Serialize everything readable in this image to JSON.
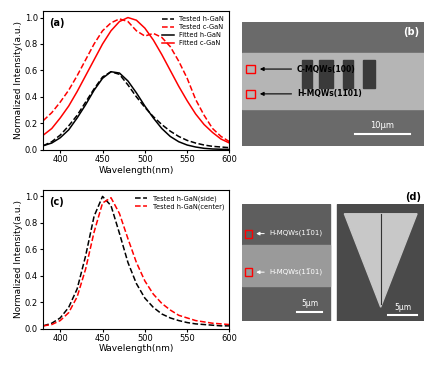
{
  "chart_data": [
    {
      "type": "line",
      "panel": "(a)",
      "x_label": "Wavelength(nm)",
      "y_label": "Normalized Intensity(a.u.)",
      "x": [
        380,
        390,
        400,
        410,
        420,
        430,
        440,
        450,
        460,
        470,
        480,
        490,
        500,
        510,
        520,
        530,
        540,
        550,
        560,
        570,
        580,
        590,
        600
      ],
      "series": [
        {
          "name": "Tested h-GaN",
          "color": "#000000",
          "line_style": "dashed",
          "values": [
            0.03,
            0.06,
            0.11,
            0.18,
            0.26,
            0.36,
            0.46,
            0.55,
            0.59,
            0.57,
            0.49,
            0.4,
            0.32,
            0.25,
            0.19,
            0.14,
            0.1,
            0.07,
            0.05,
            0.035,
            0.025,
            0.02,
            0.015
          ]
        },
        {
          "name": "Tested c-GaN",
          "color": "#ff0000",
          "line_style": "dashed",
          "values": [
            0.22,
            0.28,
            0.36,
            0.45,
            0.56,
            0.68,
            0.8,
            0.9,
            0.96,
            0.99,
            0.97,
            0.9,
            0.86,
            0.88,
            0.85,
            0.78,
            0.67,
            0.54,
            0.38,
            0.26,
            0.16,
            0.1,
            0.06
          ]
        },
        {
          "name": "Fitted h-GaN",
          "color": "#000000",
          "line_style": "solid",
          "values": [
            0.03,
            0.05,
            0.09,
            0.15,
            0.24,
            0.34,
            0.45,
            0.54,
            0.59,
            0.58,
            0.52,
            0.43,
            0.33,
            0.24,
            0.16,
            0.1,
            0.06,
            0.035,
            0.02,
            0.01,
            0.005,
            0.003,
            0.002
          ]
        },
        {
          "name": "Fitted c-GaN",
          "color": "#ff0000",
          "line_style": "solid",
          "values": [
            0.11,
            0.16,
            0.24,
            0.33,
            0.44,
            0.56,
            0.68,
            0.8,
            0.9,
            0.97,
            1.0,
            0.98,
            0.92,
            0.83,
            0.72,
            0.6,
            0.48,
            0.37,
            0.27,
            0.19,
            0.13,
            0.08,
            0.05
          ]
        }
      ],
      "xlim": [
        380,
        600
      ],
      "xticks": [
        400,
        450,
        500,
        550,
        600
      ],
      "ylim": [
        0,
        1.05
      ],
      "yticks": [
        {
          "value": 0,
          "label": "0.0"
        },
        {
          "value": 0.2,
          "label": "0.2"
        },
        {
          "value": 0.4,
          "label": "0.4"
        },
        {
          "value": 0.6,
          "label": "0.6"
        },
        {
          "value": 0.8,
          "label": "0.8"
        },
        {
          "value": 1,
          "label": "1.0"
        }
      ],
      "legend": "upper right"
    },
    {
      "type": "line",
      "panel": "(c)",
      "x_label": "Wavelength(nm)",
      "y_label": "Normalized Intensity(a.u.)",
      "x": [
        380,
        390,
        400,
        410,
        420,
        430,
        440,
        450,
        460,
        470,
        480,
        490,
        500,
        510,
        520,
        530,
        540,
        550,
        560,
        570,
        580,
        590,
        600
      ],
      "series": [
        {
          "name": "Tested h-GaN(side)",
          "color": "#000000",
          "line_style": "dashed",
          "values": [
            0.02,
            0.04,
            0.08,
            0.16,
            0.3,
            0.55,
            0.85,
            1.0,
            0.93,
            0.72,
            0.5,
            0.34,
            0.23,
            0.16,
            0.11,
            0.08,
            0.06,
            0.045,
            0.035,
            0.03,
            0.025,
            0.02,
            0.02
          ]
        },
        {
          "name": "Tested h-GaN(center)",
          "color": "#ff0000",
          "line_style": "dashed",
          "values": [
            0.02,
            0.03,
            0.06,
            0.12,
            0.24,
            0.45,
            0.73,
            0.95,
            0.99,
            0.87,
            0.68,
            0.5,
            0.36,
            0.26,
            0.19,
            0.14,
            0.1,
            0.08,
            0.06,
            0.05,
            0.04,
            0.035,
            0.03
          ]
        }
      ],
      "xlim": [
        380,
        600
      ],
      "xticks": [
        400,
        450,
        500,
        550,
        600
      ],
      "ylim": [
        0,
        1.05
      ],
      "yticks": [
        {
          "value": 0,
          "label": "0.0"
        },
        {
          "value": 0.2,
          "label": "0.2"
        },
        {
          "value": 0.4,
          "label": "0.4"
        },
        {
          "value": 0.6,
          "label": "0.6"
        },
        {
          "value": 0.8,
          "label": "0.8"
        },
        {
          "value": 1,
          "label": "1.0"
        }
      ],
      "legend": "upper right"
    }
  ],
  "images": [
    {
      "panel": "(b)",
      "annotations": [
        "C-MQWs(100)",
        "H-MQWs(11̅01)"
      ],
      "scale_bars": [
        "10μm"
      ]
    },
    {
      "panel": "(d)",
      "annotations": [
        "H-MQWs(11̅01)",
        "H-MQWs(11̅01)"
      ],
      "scale_bars": [
        "5μm",
        "5μm"
      ]
    }
  ]
}
